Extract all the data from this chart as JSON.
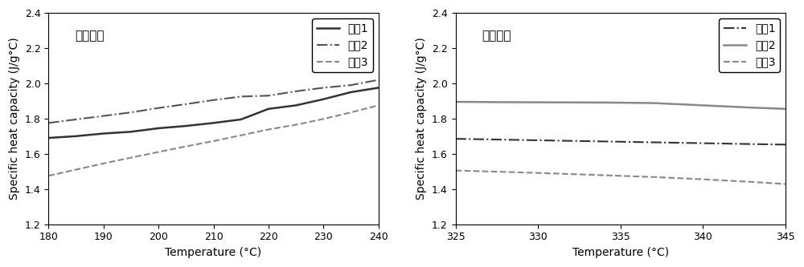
{
  "left_title": "固态比热",
  "right_title": "液态比热",
  "xlabel": "Temperature (°C)",
  "ylabel": "Specific heat capacity (J/g°C)",
  "ylim": [
    1.2,
    2.4
  ],
  "yticks": [
    1.2,
    1.4,
    1.6,
    1.8,
    2.0,
    2.2,
    2.4
  ],
  "left_xlim": [
    180,
    240
  ],
  "left_xticks": [
    180,
    190,
    200,
    210,
    220,
    230,
    240
  ],
  "right_xlim": [
    325,
    345
  ],
  "right_xticks": [
    325,
    330,
    335,
    340,
    345
  ],
  "legend_labels": [
    "实兣1",
    "实兣2",
    "实兣3"
  ],
  "left_series": {
    "example1": {
      "x": [
        180,
        185,
        190,
        195,
        200,
        205,
        210,
        215,
        220,
        225,
        230,
        235,
        240
      ],
      "y": [
        1.69,
        1.7,
        1.715,
        1.725,
        1.745,
        1.758,
        1.775,
        1.795,
        1.855,
        1.875,
        1.91,
        1.95,
        1.975
      ],
      "linestyle": "solid",
      "color": "#333333",
      "linewidth": 1.8
    },
    "example2": {
      "x": [
        180,
        185,
        190,
        195,
        200,
        205,
        210,
        215,
        220,
        225,
        230,
        235,
        240
      ],
      "y": [
        1.775,
        1.795,
        1.815,
        1.835,
        1.86,
        1.882,
        1.905,
        1.925,
        1.93,
        1.955,
        1.975,
        1.99,
        2.02
      ],
      "linestyle": "dashdot",
      "color": "#555555",
      "linewidth": 1.5
    },
    "example3": {
      "x": [
        180,
        185,
        190,
        195,
        200,
        205,
        210,
        215,
        220,
        225,
        230,
        235,
        240
      ],
      "y": [
        1.475,
        1.51,
        1.545,
        1.578,
        1.61,
        1.642,
        1.672,
        1.705,
        1.738,
        1.765,
        1.798,
        1.835,
        1.875
      ],
      "linestyle": "dashed",
      "color": "#888888",
      "linewidth": 1.5
    }
  },
  "right_series": {
    "example1": {
      "x": [
        325,
        328,
        331,
        334,
        337,
        340,
        343,
        345
      ],
      "y": [
        1.685,
        1.68,
        1.675,
        1.67,
        1.665,
        1.66,
        1.655,
        1.652
      ],
      "linestyle": "dashdot",
      "color": "#333333",
      "linewidth": 1.5
    },
    "example2": {
      "x": [
        325,
        328,
        331,
        334,
        337,
        340,
        343,
        345
      ],
      "y": [
        1.895,
        1.893,
        1.892,
        1.891,
        1.888,
        1.875,
        1.862,
        1.855
      ],
      "linestyle": "solid",
      "color": "#888888",
      "linewidth": 1.8
    },
    "example3": {
      "x": [
        325,
        328,
        331,
        334,
        337,
        340,
        343,
        345
      ],
      "y": [
        1.505,
        1.497,
        1.488,
        1.478,
        1.468,
        1.455,
        1.44,
        1.428
      ],
      "linestyle": "dashed",
      "color": "#888888",
      "linewidth": 1.5
    }
  },
  "background_color": "#ffffff",
  "title_fontsize": 11,
  "label_fontsize": 10,
  "tick_fontsize": 9,
  "legend_fontsize": 10
}
